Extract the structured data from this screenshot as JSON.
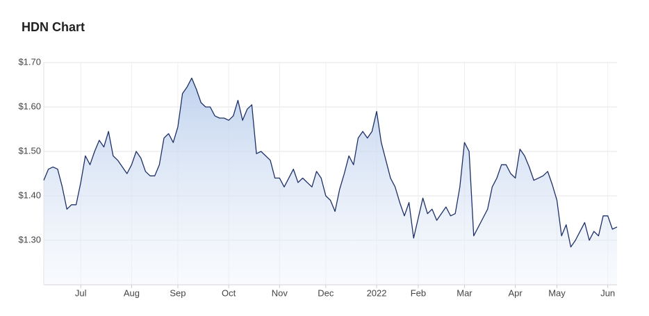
{
  "chart_data": {
    "type": "area",
    "title": "HDN Chart",
    "categories": [
      null,
      null,
      null,
      null,
      null,
      null,
      null,
      null,
      "Jul",
      null,
      null,
      null,
      null,
      null,
      null,
      null,
      null,
      null,
      null,
      "Aug",
      null,
      null,
      null,
      null,
      null,
      null,
      null,
      null,
      null,
      "Sep",
      null,
      null,
      null,
      null,
      null,
      null,
      null,
      null,
      null,
      null,
      "Oct",
      null,
      null,
      null,
      null,
      null,
      null,
      null,
      null,
      null,
      null,
      "Nov",
      null,
      null,
      null,
      null,
      null,
      null,
      null,
      null,
      null,
      "Dec",
      null,
      null,
      null,
      null,
      null,
      null,
      null,
      null,
      null,
      null,
      "2022",
      null,
      null,
      null,
      null,
      null,
      null,
      null,
      null,
      "Feb",
      null,
      null,
      null,
      null,
      null,
      null,
      null,
      null,
      null,
      "Mar",
      null,
      null,
      null,
      null,
      null,
      null,
      null,
      null,
      null,
      null,
      "Apr",
      null,
      null,
      null,
      null,
      null,
      null,
      null,
      null,
      "May",
      null,
      null,
      null,
      null,
      null,
      null,
      null,
      null,
      null,
      null,
      "Jun",
      null,
      null
    ],
    "series": [
      {
        "color": "#1c2f66",
        "values": [
          1.435,
          1.46,
          1.465,
          1.46,
          1.42,
          1.37,
          1.38,
          1.38,
          1.43,
          1.49,
          1.47,
          1.5,
          1.525,
          1.51,
          1.545,
          1.49,
          1.48,
          1.465,
          1.45,
          1.47,
          1.5,
          1.485,
          1.455,
          1.445,
          1.445,
          1.47,
          1.53,
          1.54,
          1.52,
          1.555,
          1.63,
          1.645,
          1.665,
          1.64,
          1.61,
          1.6,
          1.6,
          1.58,
          1.575,
          1.575,
          1.57,
          1.58,
          1.615,
          1.57,
          1.595,
          1.605,
          1.495,
          1.5,
          1.49,
          1.48,
          1.44,
          1.44,
          1.42,
          1.44,
          1.46,
          1.43,
          1.44,
          1.43,
          1.42,
          1.455,
          1.44,
          1.4,
          1.39,
          1.365,
          1.415,
          1.45,
          1.49,
          1.47,
          1.53,
          1.545,
          1.53,
          1.545,
          1.59,
          1.52,
          1.48,
          1.44,
          1.42,
          1.385,
          1.355,
          1.385,
          1.305,
          1.35,
          1.395,
          1.36,
          1.37,
          1.345,
          1.36,
          1.375,
          1.355,
          1.36,
          1.42,
          1.52,
          1.5,
          1.31,
          1.33,
          1.35,
          1.37,
          1.42,
          1.44,
          1.47,
          1.47,
          1.45,
          1.44,
          1.505,
          1.49,
          1.465,
          1.435,
          1.44,
          1.445,
          1.455,
          1.425,
          1.39,
          1.31,
          1.335,
          1.285,
          1.3,
          1.32,
          1.34,
          1.3,
          1.32,
          1.31,
          1.355,
          1.355,
          1.325,
          1.33
        ]
      }
    ],
    "ylim": [
      1.2,
      1.7
    ],
    "yticks": [
      {
        "value": 1.3,
        "label": "$1.30"
      },
      {
        "value": 1.4,
        "label": "$1.40"
      },
      {
        "value": 1.5,
        "label": "$1.50"
      },
      {
        "value": 1.6,
        "label": "$1.60"
      },
      {
        "value": 1.7,
        "label": "$1.70"
      }
    ],
    "grid": true
  }
}
